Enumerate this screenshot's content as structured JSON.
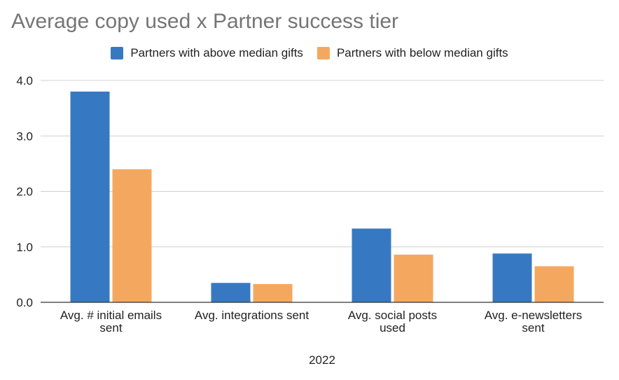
{
  "chart_data": {
    "type": "bar",
    "title": "Average copy used x Partner success tier",
    "xlabel": "2022",
    "ylabel": "",
    "ylim": [
      0,
      4.0
    ],
    "yticks": [
      "0.0",
      "1.0",
      "2.0",
      "3.0",
      "4.0"
    ],
    "grid": true,
    "legend_position": "top",
    "categories": [
      [
        "Avg. # initial emails",
        "sent"
      ],
      [
        "Avg. integrations sent"
      ],
      [
        "Avg. social posts",
        "used"
      ],
      [
        "Avg. e-newsletters",
        "sent"
      ]
    ],
    "series": [
      {
        "name": "Partners with above median gifts",
        "color": "#3778c2",
        "values": [
          3.8,
          0.35,
          1.33,
          0.88
        ]
      },
      {
        "name": "Partners with below median gifts",
        "color": "#f4a85f",
        "values": [
          2.4,
          0.33,
          0.86,
          0.65
        ]
      }
    ]
  }
}
